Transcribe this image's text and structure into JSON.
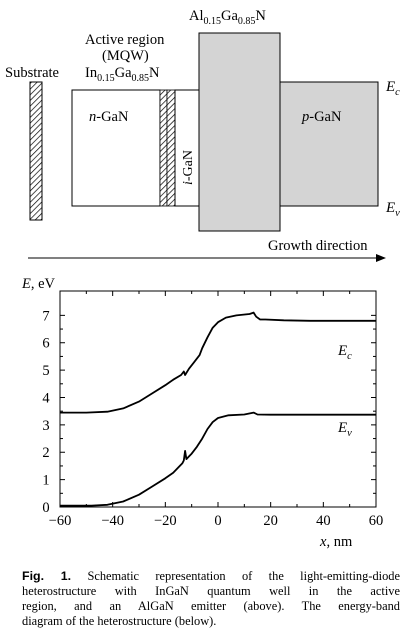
{
  "structure": {
    "substrate": "Substrate",
    "active_region": "Active region",
    "mqw": "(MQW)",
    "ingan": {
      "base": "In",
      "sub1": "0.15",
      "mid": "Ga",
      "sub2": "0.85",
      "tail": "N"
    },
    "algan": {
      "base": "Al",
      "sub1": "0.15",
      "mid": "Ga",
      "sub2": "0.85",
      "tail": "N"
    },
    "n_gan": {
      "italic": "n",
      "rest": "-GaN"
    },
    "i_gan": {
      "italic": "i",
      "rest": "-GaN"
    },
    "p_gan": {
      "italic": "p",
      "rest": "-GaN"
    },
    "ec": {
      "base": "E",
      "sub": "c"
    },
    "ev": {
      "base": "E",
      "sub": "v"
    },
    "growth_direction": "Growth direction"
  },
  "chart_data": {
    "type": "line",
    "ylabel": {
      "italic": "E",
      "rest": ", eV"
    },
    "xlabel": {
      "italic": "x",
      "rest": ", nm"
    },
    "xlim": [
      -60,
      60
    ],
    "ylim": [
      0,
      7
    ],
    "xticks": [
      "−60",
      "−40",
      "−20",
      "0",
      "20",
      "40",
      "60"
    ],
    "xtick_values": [
      -60,
      -40,
      -20,
      0,
      20,
      40,
      60
    ],
    "yticks": [
      "0",
      "1",
      "2",
      "3",
      "4",
      "5",
      "6",
      "7"
    ],
    "ytick_values": [
      0,
      1,
      2,
      3,
      4,
      5,
      6,
      7
    ],
    "series": [
      {
        "name": "Ec",
        "label": {
          "base": "E",
          "sub": "c"
        },
        "points": [
          [
            -60,
            3.45
          ],
          [
            -50,
            3.45
          ],
          [
            -42,
            3.48
          ],
          [
            -36,
            3.6
          ],
          [
            -30,
            3.85
          ],
          [
            -25,
            4.15
          ],
          [
            -20,
            4.45
          ],
          [
            -17,
            4.65
          ],
          [
            -14,
            4.82
          ],
          [
            -13,
            4.95
          ],
          [
            -12.5,
            4.82
          ],
          [
            -12,
            4.9
          ],
          [
            -11,
            5.05
          ],
          [
            -9,
            5.3
          ],
          [
            -7,
            5.55
          ],
          [
            -6,
            5.8
          ],
          [
            -4,
            6.2
          ],
          [
            -2,
            6.55
          ],
          [
            0,
            6.75
          ],
          [
            3,
            6.92
          ],
          [
            7,
            7.0
          ],
          [
            12,
            7.05
          ],
          [
            13.5,
            7.1
          ],
          [
            14.5,
            6.95
          ],
          [
            16,
            6.85
          ],
          [
            18,
            6.85
          ],
          [
            25,
            6.82
          ],
          [
            35,
            6.8
          ],
          [
            60,
            6.8
          ]
        ]
      },
      {
        "name": "Ev",
        "label": {
          "base": "E",
          "sub": "v"
        },
        "points": [
          [
            -60,
            0.05
          ],
          [
            -48,
            0.05
          ],
          [
            -42,
            0.08
          ],
          [
            -36,
            0.2
          ],
          [
            -30,
            0.45
          ],
          [
            -25,
            0.75
          ],
          [
            -20,
            1.05
          ],
          [
            -17,
            1.25
          ],
          [
            -15,
            1.45
          ],
          [
            -13.5,
            1.6
          ],
          [
            -13,
            1.7
          ],
          [
            -12.5,
            2.05
          ],
          [
            -12,
            1.75
          ],
          [
            -11,
            1.85
          ],
          [
            -10,
            1.95
          ],
          [
            -8,
            2.2
          ],
          [
            -6,
            2.5
          ],
          [
            -4,
            2.85
          ],
          [
            -2,
            3.1
          ],
          [
            0,
            3.25
          ],
          [
            4,
            3.35
          ],
          [
            10,
            3.38
          ],
          [
            13.5,
            3.45
          ],
          [
            15,
            3.38
          ],
          [
            20,
            3.37
          ],
          [
            35,
            3.37
          ],
          [
            60,
            3.37
          ]
        ]
      }
    ]
  },
  "caption": {
    "label": "Fig. 1.",
    "lines": [
      "Schematic representation of the light-emitting-diode",
      "heterostructure with InGaN quantum well in the active",
      "region, and an AlGaN emitter (above). The energy-band",
      "diagram of the heterostructure (below)."
    ]
  }
}
